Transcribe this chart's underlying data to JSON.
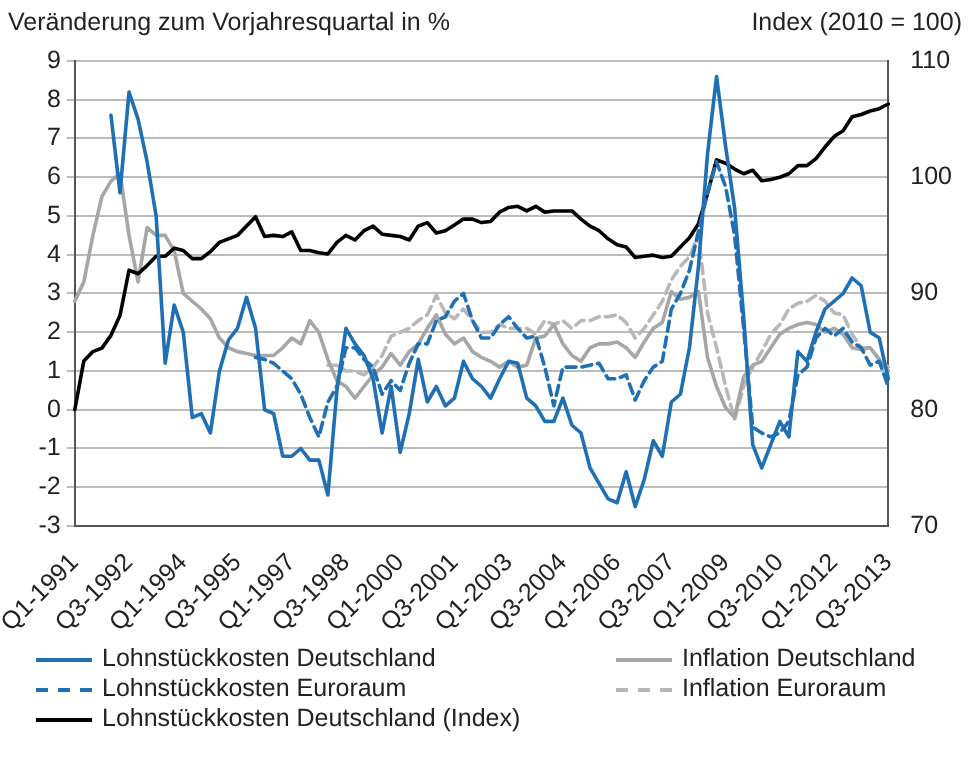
{
  "chart_data": {
    "type": "line",
    "ylabel": "Veränderung zum Vorjahresquartal in %",
    "y2label": "Index (2010 = 100)",
    "categories": [
      "Q1-1991",
      null,
      null,
      null,
      null,
      null,
      "Q3-1992",
      null,
      null,
      null,
      null,
      null,
      "Q1-1994",
      null,
      null,
      null,
      null,
      null,
      "Q3-1995",
      null,
      null,
      null,
      null,
      null,
      "Q1-1997",
      null,
      null,
      null,
      null,
      null,
      "Q3-1998",
      null,
      null,
      null,
      null,
      null,
      "Q1-2000",
      null,
      null,
      null,
      null,
      null,
      "Q3-2001",
      null,
      null,
      null,
      null,
      null,
      "Q1-2003",
      null,
      null,
      null,
      null,
      null,
      "Q3-2004",
      null,
      null,
      null,
      null,
      null,
      "Q1-2006",
      null,
      null,
      null,
      null,
      null,
      "Q3-2007",
      null,
      null,
      null,
      null,
      null,
      "Q1-2009",
      null,
      null,
      null,
      null,
      null,
      "Q3-2010",
      null,
      null,
      null,
      null,
      null,
      "Q1-2012",
      null,
      null,
      null,
      null,
      null,
      "Q3-2013"
    ],
    "series": [
      {
        "name": "Lohnstückkosten Deutschland",
        "color": "#1f6fb5",
        "values": [
          null,
          null,
          null,
          null,
          7.6,
          5.6,
          8.2,
          7.5,
          6.4,
          5,
          1.2,
          2.7,
          2,
          -0.2,
          -0.1,
          -0.6,
          1,
          1.8,
          2.1,
          2.9,
          2.1,
          0,
          -0.1,
          -1.2,
          -1.2,
          -1,
          -1.3,
          -1.3,
          -2.2,
          0.5,
          2.1,
          1.7,
          1.4,
          0.8,
          -0.6,
          0.6,
          -1.1,
          -0.1,
          1.3,
          0.2,
          0.6,
          0.1,
          0.3,
          1.25,
          0.8,
          0.6,
          0.3,
          0.8,
          1.25,
          1.2,
          0.3,
          0.1,
          -0.3,
          -0.3,
          0.3,
          -0.4,
          -0.6,
          -1.5,
          -1.9,
          -2.3,
          -2.4,
          -1.6,
          -2.5,
          -1.8,
          -0.8,
          -1.2,
          0.2,
          0.4,
          1.6,
          3.7,
          6.6,
          8.6,
          6.8,
          5.2,
          2.4,
          -0.9,
          -1.5,
          -0.9,
          -0.3,
          -0.7,
          1.5,
          1.25,
          2,
          2.6,
          2.8,
          3,
          3.4,
          3.2,
          2,
          1.85,
          0.8
        ]
      },
      {
        "name": "Lohnstückkosten Euroraum",
        "color": "#1f6fb5",
        "line_style": "dashed",
        "values": [
          null,
          null,
          null,
          null,
          null,
          null,
          null,
          null,
          null,
          null,
          null,
          null,
          null,
          null,
          null,
          null,
          null,
          null,
          null,
          null,
          1.35,
          1.3,
          1.2,
          1,
          0.8,
          0.4,
          -0.2,
          -0.7,
          0.2,
          0.6,
          1.6,
          1.6,
          1.3,
          1.1,
          0.4,
          0.75,
          0.5,
          1.2,
          1.7,
          1.7,
          2.3,
          2.4,
          2.8,
          3,
          2.3,
          1.85,
          1.85,
          2.2,
          2.4,
          2.1,
          1.85,
          1.9,
          1.1,
          0.1,
          1.1,
          1.1,
          1.1,
          1.15,
          1.2,
          0.8,
          0.8,
          0.9,
          0.25,
          0.75,
          1.1,
          1.25,
          2.6,
          3,
          3.6,
          4.6,
          5.6,
          6.4,
          5.75,
          4.5,
          2.1,
          -0.45,
          -0.6,
          -0.7,
          -0.6,
          -0.3,
          0.9,
          1.1,
          1.85,
          2.1,
          1.9,
          2.1,
          1.75,
          1.6,
          1.15,
          1.25,
          0.6
        ]
      },
      {
        "name": "Lohnstückkosten Deutschland (Index)",
        "color": "#000000",
        "axis": "y2",
        "values": [
          80,
          84.2,
          85,
          85.3,
          86.4,
          88.1,
          92,
          91.7,
          92.4,
          93.2,
          93.2,
          93.9,
          93.7,
          93,
          93,
          93.6,
          94.4,
          94.7,
          95,
          95.8,
          96.6,
          94.9,
          95,
          94.9,
          95.3,
          93.7,
          93.7,
          93.5,
          93.4,
          94.4,
          95,
          94.6,
          95.4,
          95.8,
          95.1,
          95,
          94.9,
          94.6,
          95.8,
          96.1,
          95.2,
          95.4,
          95.9,
          96.4,
          96.4,
          96.1,
          96.2,
          97,
          97.4,
          97.5,
          97.1,
          97.5,
          97,
          97.1,
          97.1,
          97.1,
          96.4,
          95.8,
          95.4,
          94.7,
          94.2,
          94,
          93.1,
          93.2,
          93.3,
          93.1,
          93.2,
          94,
          94.8,
          96,
          98.6,
          101.5,
          101.2,
          100.7,
          100.3,
          100.6,
          99.7,
          99.8,
          100,
          100.3,
          101,
          101,
          101.6,
          102.6,
          103.5,
          104,
          105.2,
          105.4,
          105.7,
          105.9,
          106.3
        ]
      },
      {
        "name": "Inflation Deutschland",
        "color": "#a6a6a6",
        "values": [
          2.8,
          3.3,
          4.5,
          5.5,
          5.9,
          6.1,
          4.5,
          3.3,
          4.7,
          4.5,
          4.5,
          4.1,
          3,
          2.8,
          2.6,
          2.35,
          1.85,
          1.6,
          1.5,
          1.45,
          1.4,
          1.4,
          1.4,
          1.6,
          1.85,
          1.7,
          2.3,
          2,
          1.3,
          0.75,
          0.6,
          0.3,
          0.6,
          0.9,
          1.1,
          1.45,
          1.15,
          1.5,
          1.7,
          2.1,
          2.45,
          1.95,
          1.7,
          1.85,
          1.5,
          1.35,
          1.25,
          1.1,
          1.25,
          1.1,
          1.15,
          1.85,
          1.9,
          2.2,
          1.7,
          1.4,
          1.25,
          1.6,
          1.7,
          1.7,
          1.75,
          1.6,
          1.35,
          1.75,
          2.1,
          2.25,
          3.05,
          2.85,
          2.9,
          3.05,
          1.35,
          0.6,
          0.05,
          -0.2,
          0.85,
          1.15,
          1.25,
          1.6,
          1.95,
          2.1,
          2.2,
          2.25,
          2.2,
          2,
          2.1,
          1.95,
          1.6,
          1.55,
          1.6,
          1.3,
          1
        ]
      },
      {
        "name": "Inflation Euroraum",
        "color": "#b8b8b8",
        "line_style": "dashed",
        "values": [
          null,
          null,
          null,
          null,
          null,
          null,
          null,
          null,
          null,
          null,
          null,
          null,
          null,
          null,
          null,
          null,
          null,
          null,
          null,
          null,
          null,
          null,
          null,
          null,
          null,
          null,
          null,
          null,
          1.15,
          1.15,
          1,
          1,
          0.9,
          1.1,
          1.4,
          1.9,
          2,
          2.1,
          2.3,
          2.45,
          2.95,
          2.5,
          2.35,
          2.6,
          2.3,
          2,
          2,
          2.2,
          2.1,
          2.1,
          2.1,
          1.95,
          2.3,
          2.2,
          2.3,
          2.1,
          2.3,
          2.3,
          2.4,
          2.4,
          2.45,
          2.25,
          1.85,
          2.1,
          2.45,
          2.8,
          3.35,
          3.7,
          3.95,
          4.5,
          2.5,
          1.6,
          0.6,
          -0.25,
          0.6,
          1.1,
          1.5,
          1.95,
          2.2,
          2.6,
          2.75,
          2.8,
          2.95,
          2.8,
          2.5,
          2.45,
          1.95,
          1.6,
          1.6,
          1.3,
          1.1
        ]
      }
    ],
    "ylim": [
      -3,
      9
    ],
    "yticks": [
      -3,
      -2,
      -1,
      0,
      1,
      2,
      3,
      4,
      5,
      6,
      7,
      8,
      9
    ],
    "y2lim": [
      70,
      110
    ],
    "y2ticks": [
      70,
      80,
      90,
      100,
      110
    ],
    "grid": "y",
    "legend": "bottom",
    "marker": "none"
  }
}
